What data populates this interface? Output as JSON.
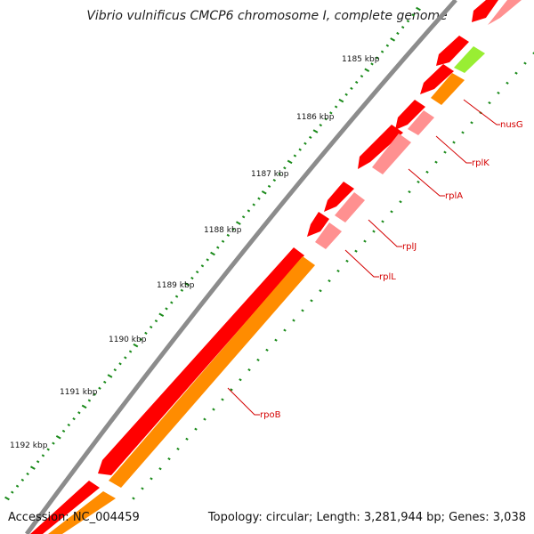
{
  "title": "Vibrio vulnificus CMCP6 chromosome I, complete genome",
  "footer": {
    "accession": "Accession: NC_004459",
    "stats": "Topology: circular; Length: 3,281,944 bp; Genes: 3,038"
  },
  "colors": {
    "backbone": "#8c8c8c",
    "forward_cds": "#ff0000",
    "reverse_cds": "#ff0000",
    "forward_gene": "#ff9090",
    "reverse_gene": "#ff8c00",
    "green_feature": "#99ee33",
    "tick": "#1a8a1a",
    "label_line": "#d40000"
  },
  "ticks": [
    {
      "label": "1185 kbp"
    },
    {
      "label": "1186 kbp"
    },
    {
      "label": "1187 kbp"
    },
    {
      "label": "1188 kbp"
    },
    {
      "label": "1189 kbp"
    },
    {
      "label": "1190 kbp"
    },
    {
      "label": "1191 kbp"
    },
    {
      "label": "1192 kbp"
    }
  ],
  "genes": [
    {
      "name": "nusG"
    },
    {
      "name": "rplK"
    },
    {
      "name": "rplA"
    },
    {
      "name": "rplJ"
    },
    {
      "name": "rplL"
    },
    {
      "name": "rpoB"
    }
  ]
}
